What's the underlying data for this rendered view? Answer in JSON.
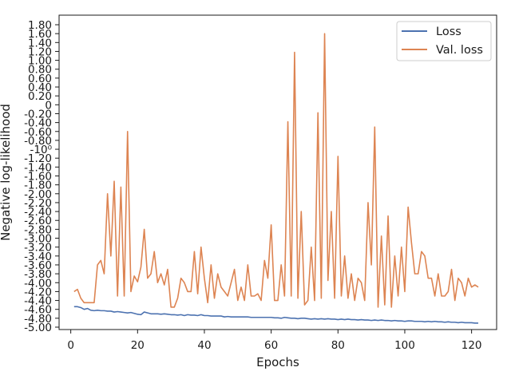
{
  "chart_data": {
    "type": "line",
    "title": "",
    "xlabel": "Epochs",
    "ylabel": "Negative log-likelihood",
    "x_ticks": [
      0,
      20,
      40,
      60,
      80,
      100,
      120
    ],
    "xlim": [
      -3.5,
      127.5
    ],
    "y_ticks": [
      "-5.00",
      "-4.80",
      "-4.60",
      "-4.40",
      "-4.20",
      "-4.00",
      "-3.80",
      "-3.60",
      "-3.40",
      "-3.20",
      "-3.00",
      "-2.80",
      "-2.60",
      "-2.40",
      "-2.20",
      "-2.00",
      "-1.80",
      "-1.60",
      "-1.40",
      "-1.20",
      "-10⁰",
      "-0.80",
      "-0.60",
      "-0.40",
      "-0.20",
      "0",
      "0.20",
      "0.40",
      "0.60",
      "0.80",
      "1.00",
      "1.20",
      "1.40",
      "1.60",
      "1.80"
    ],
    "grid": false,
    "legend_position": "top-right",
    "series": [
      {
        "name": "Loss",
        "color": "#4c72b0",
        "x_start": 1,
        "values": [
          -4.54,
          -4.54,
          -4.56,
          -4.6,
          -4.58,
          -4.62,
          -4.63,
          -4.62,
          -4.63,
          -4.63,
          -4.64,
          -4.64,
          -4.66,
          -4.65,
          -4.66,
          -4.67,
          -4.68,
          -4.67,
          -4.69,
          -4.71,
          -4.72,
          -4.66,
          -4.68,
          -4.7,
          -4.7,
          -4.7,
          -4.71,
          -4.7,
          -4.71,
          -4.72,
          -4.72,
          -4.73,
          -4.72,
          -4.74,
          -4.72,
          -4.73,
          -4.73,
          -4.74,
          -4.72,
          -4.74,
          -4.74,
          -4.75,
          -4.75,
          -4.75,
          -4.75,
          -4.77,
          -4.76,
          -4.77,
          -4.77,
          -4.77,
          -4.77,
          -4.77,
          -4.77,
          -4.78,
          -4.78,
          -4.78,
          -4.78,
          -4.78,
          -4.78,
          -4.78,
          -4.79,
          -4.79,
          -4.8,
          -4.78,
          -4.79,
          -4.8,
          -4.8,
          -4.81,
          -4.8,
          -4.8,
          -4.81,
          -4.82,
          -4.81,
          -4.82,
          -4.81,
          -4.82,
          -4.81,
          -4.82,
          -4.82,
          -4.83,
          -4.82,
          -4.83,
          -4.82,
          -4.83,
          -4.83,
          -4.84,
          -4.83,
          -4.84,
          -4.84,
          -4.85,
          -4.84,
          -4.85,
          -4.84,
          -4.85,
          -4.85,
          -4.86,
          -4.85,
          -4.86,
          -4.86,
          -4.87,
          -4.86,
          -4.86,
          -4.87,
          -4.87,
          -4.87,
          -4.88,
          -4.87,
          -4.88,
          -4.87,
          -4.88,
          -4.88,
          -4.89,
          -4.88,
          -4.89,
          -4.89,
          -4.9,
          -4.89,
          -4.9,
          -4.9,
          -4.9,
          -4.91,
          -4.91
        ]
      },
      {
        "name": "Val. loss",
        "color": "#dd8452",
        "x_start": 1,
        "values": [
          -4.2,
          -4.15,
          -4.35,
          -4.45,
          -4.45,
          -4.45,
          -4.45,
          -3.6,
          -3.5,
          -3.8,
          -2.0,
          -3.4,
          -1.72,
          -4.3,
          -1.85,
          -4.3,
          -0.6,
          -4.2,
          -3.85,
          -3.98,
          -3.65,
          -2.8,
          -3.9,
          -3.8,
          -3.3,
          -4.0,
          -3.8,
          -4.05,
          -3.7,
          -4.55,
          -4.55,
          -4.35,
          -3.9,
          -4.0,
          -4.2,
          -4.2,
          -3.3,
          -4.25,
          -3.2,
          -3.9,
          -4.45,
          -3.6,
          -4.35,
          -3.8,
          -4.1,
          -4.2,
          -4.3,
          -4.0,
          -3.7,
          -4.4,
          -4.1,
          -4.4,
          -3.6,
          -4.3,
          -4.3,
          -4.25,
          -4.4,
          -3.5,
          -3.9,
          -2.7,
          -4.4,
          -4.4,
          -3.6,
          -4.3,
          -0.38,
          -4.3,
          1.18,
          -4.35,
          -2.4,
          -4.5,
          -4.4,
          -3.2,
          -4.4,
          -0.18,
          -4.35,
          1.6,
          -3.95,
          -2.4,
          -4.35,
          -1.16,
          -4.3,
          -3.4,
          -4.35,
          -3.8,
          -4.4,
          -3.9,
          -4.0,
          -4.4,
          -2.2,
          -3.6,
          -0.5,
          -4.55,
          -2.95,
          -4.5,
          -2.5,
          -4.55,
          -3.4,
          -4.3,
          -3.2,
          -4.2,
          -2.3,
          -3.1,
          -3.8,
          -3.8,
          -3.3,
          -3.4,
          -3.9,
          -3.9,
          -4.3,
          -3.8,
          -4.3,
          -4.3,
          -4.2,
          -3.7,
          -4.4,
          -3.9,
          -4.0,
          -4.3,
          -3.9,
          -4.1,
          -4.05,
          -4.1
        ]
      }
    ]
  }
}
